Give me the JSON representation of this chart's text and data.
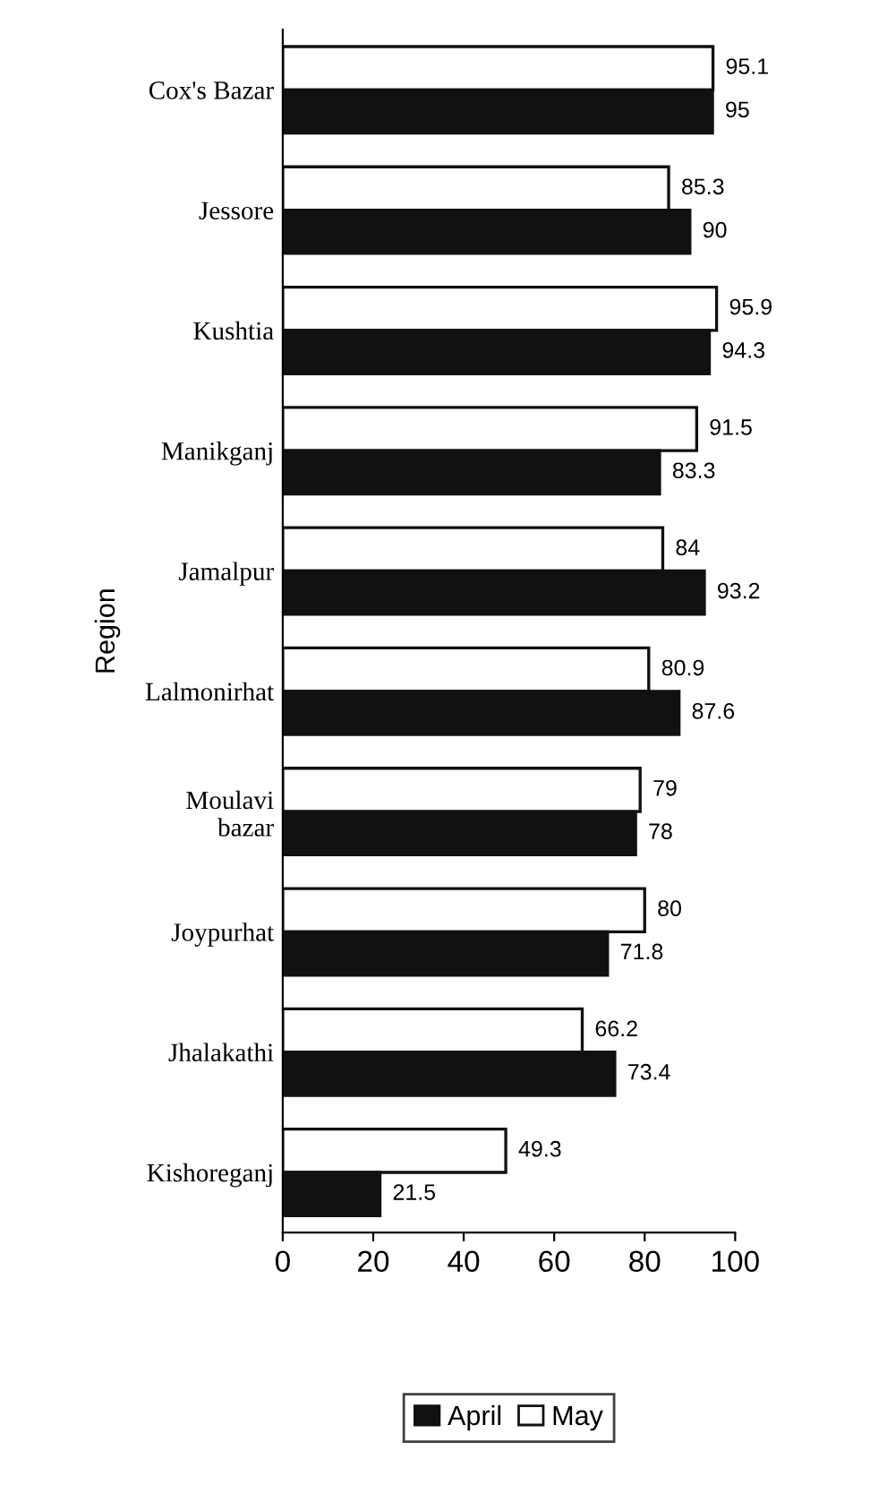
{
  "chart_data": {
    "type": "bar",
    "orientation": "horizontal",
    "ylabel": "Region",
    "categories": [
      "Cox's Bazar",
      "Jessore",
      "Kushtia",
      "Manikganj",
      "Jamalpur",
      "Lalmonirhat",
      "Moulavi\nbazar",
      "Joypurhat",
      "Jhalakathi",
      "Kishoreganj"
    ],
    "series": [
      {
        "name": "May",
        "color": "#ffffff",
        "values": [
          95.1,
          85.3,
          95.9,
          91.5,
          84,
          80.9,
          79,
          80,
          66.2,
          49.3
        ]
      },
      {
        "name": "April",
        "color": "#111111",
        "values": [
          95,
          90,
          94.3,
          83.3,
          93.2,
          87.6,
          78,
          71.8,
          73.4,
          21.5
        ]
      }
    ],
    "xlim": [
      0,
      100
    ],
    "xticks": [
      0,
      20,
      40,
      60,
      80,
      100
    ],
    "data_labels": true,
    "legend": "bottom",
    "grid": false
  }
}
